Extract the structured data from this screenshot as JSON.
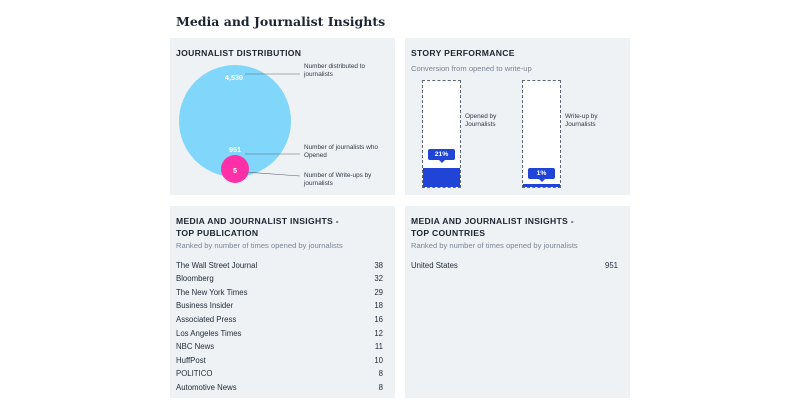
{
  "page_title": "Media and Journalist Insights",
  "distribution": {
    "title": "JOURNALIST DISTRIBUTION",
    "distributed_value": "4,530",
    "opened_value": "951",
    "writeups_value": "5",
    "distributed_label": "Number distributed to journalists",
    "opened_label": "Number of journalists who Opened",
    "writeups_label": "Number of Write-ups by journalists",
    "colors": {
      "distributed": "#80d7fb",
      "writeups": "#ff2fa8"
    }
  },
  "performance": {
    "title": "STORY PERFORMANCE",
    "subtitle": "Conversion from opened to write-up",
    "bars": [
      {
        "label": "Opened by Journalists",
        "percent_text": "21%",
        "fill_fraction": 0.21
      },
      {
        "label": "Write-up by Journalists",
        "percent_text": "1%",
        "fill_fraction": 0.01
      }
    ],
    "colors": {
      "fill": "#1f44d6"
    }
  },
  "top_publication": {
    "title_line1": "MEDIA AND JOURNALIST INSIGHTS -",
    "title_line2": "TOP PUBLICATION",
    "subtitle": "Ranked by number of times opened by journalists",
    "rows": [
      {
        "name": "The Wall Street Journal",
        "count": "38"
      },
      {
        "name": "Bloomberg",
        "count": "32"
      },
      {
        "name": "The New York Times",
        "count": "29"
      },
      {
        "name": "Business Insider",
        "count": "18"
      },
      {
        "name": "Associated Press",
        "count": "16"
      },
      {
        "name": "Los Angeles Times",
        "count": "12"
      },
      {
        "name": "NBC News",
        "count": "11"
      },
      {
        "name": "HuffPost",
        "count": "10"
      },
      {
        "name": "POLITICO",
        "count": "8"
      },
      {
        "name": "Automotive News",
        "count": "8"
      }
    ]
  },
  "top_countries": {
    "title_line1": "MEDIA AND JOURNALIST INSIGHTS -",
    "title_line2": "TOP COUNTRIES",
    "subtitle": "Ranked by number of times opened by journalists",
    "rows": [
      {
        "name": "United States",
        "count": "951"
      }
    ]
  }
}
